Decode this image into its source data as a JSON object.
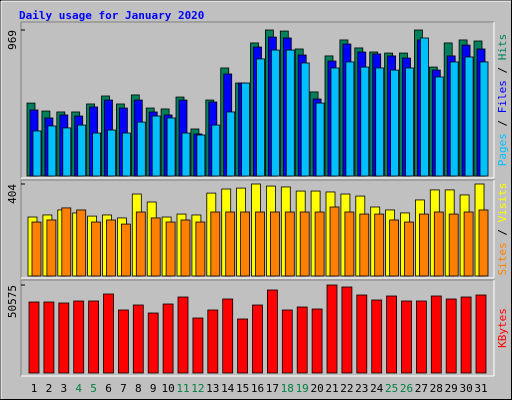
{
  "chart_data": [
    {
      "type": "bar",
      "title": "Daily usage for January 2020",
      "series": [
        {
          "name": "Hits",
          "color": "#00805c",
          "values": [
            484,
            431,
            425,
            425,
            478,
            531,
            478,
            538,
            451,
            445,
            524,
            312,
            504,
            717,
            617,
            883,
            969,
            962,
            843,
            558,
            797,
            903,
            850,
            823,
            816,
            816,
            969,
            723,
            883,
            903,
            896
          ]
        },
        {
          "name": "Files",
          "color": "#0000ff",
          "values": [
            438,
            385,
            405,
            398,
            458,
            504,
            451,
            504,
            425,
            405,
            504,
            279,
            491,
            677,
            617,
            856,
            922,
            916,
            803,
            511,
            763,
            876,
            823,
            810,
            797,
            783,
            903,
            703,
            797,
            869,
            843
          ]
        },
        {
          "name": "Pages",
          "color": "#00c0ff",
          "values": [
            299,
            332,
            319,
            338,
            285,
            305,
            285,
            358,
            398,
            385,
            285,
            272,
            338,
            425,
            617,
            777,
            836,
            836,
            750,
            484,
            717,
            757,
            723,
            717,
            703,
            717,
            916,
            657,
            757,
            790,
            757
          ]
        }
      ],
      "ylim": [
        0,
        969
      ],
      "yticks": [
        969
      ]
    },
    {
      "type": "bar",
      "series": [
        {
          "name": "Visits",
          "color": "#ffff00",
          "values": [
            259,
            268,
            290,
            277,
            263,
            268,
            255,
            360,
            325,
            259,
            272,
            268,
            364,
            382,
            386,
            404,
            395,
            391,
            373,
            373,
            369,
            360,
            351,
            303,
            290,
            277,
            334,
            378,
            378,
            356,
            404
          ]
        },
        {
          "name": "Sites",
          "color": "#ff8000",
          "values": [
            237,
            246,
            299,
            290,
            237,
            246,
            228,
            281,
            255,
            237,
            246,
            237,
            281,
            281,
            281,
            281,
            281,
            281,
            281,
            281,
            303,
            281,
            272,
            272,
            246,
            237,
            272,
            281,
            272,
            281,
            290
          ]
        }
      ],
      "ylim": [
        0,
        404
      ],
      "yticks": [
        404
      ]
    },
    {
      "type": "bar",
      "categories": [
        "1",
        "2",
        "3",
        "4",
        "5",
        "6",
        "7",
        "8",
        "9",
        "10",
        "11",
        "12",
        "13",
        "14",
        "15",
        "16",
        "17",
        "18",
        "19",
        "20",
        "21",
        "22",
        "23",
        "24",
        "25",
        "26",
        "27",
        "28",
        "29",
        "30",
        "31"
      ],
      "highlight": [
        3,
        4,
        10,
        11,
        17,
        18,
        24,
        25
      ],
      "highlight_color": "#008040",
      "series": [
        {
          "name": "KBytes",
          "color": "#ff0000",
          "values": [
            40805,
            40805,
            40230,
            41379,
            41379,
            45402,
            36207,
            39080,
            34483,
            39655,
            43678,
            31609,
            36207,
            42529,
            31034,
            39080,
            47701,
            36207,
            37931,
            36782,
            50575,
            49425,
            44828,
            41954,
            44253,
            41379,
            41379,
            44253,
            42529,
            43678,
            44828
          ]
        }
      ],
      "ylim": [
        0,
        50575
      ],
      "yticks": [
        50575
      ]
    }
  ]
}
